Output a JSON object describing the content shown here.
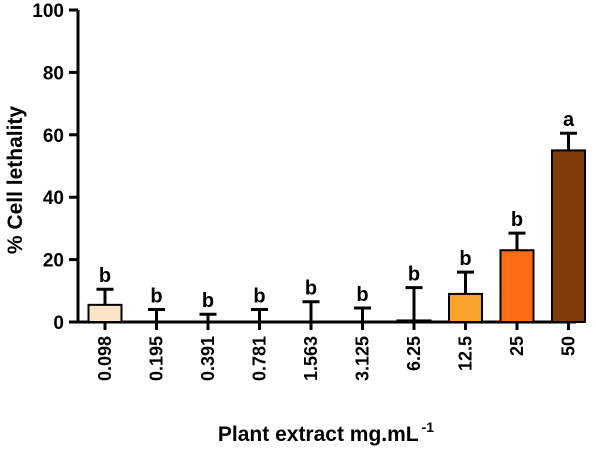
{
  "chart_data": {
    "type": "bar",
    "xlabel": "Plant extract mg.mL",
    "xlabel_superscript": "-1",
    "ylabel": "% Cell lethality",
    "ylim": [
      0,
      100
    ],
    "yticks": [
      "0",
      "20",
      "40",
      "60",
      "80",
      "100"
    ],
    "ytick_values": [
      0,
      20,
      40,
      60,
      80,
      100
    ],
    "categories": [
      "0.098",
      "0.195",
      "0.391",
      "0.781",
      "1.563",
      "3.125",
      "6.25",
      "12.5",
      "25",
      "50"
    ],
    "values": [
      5.5,
      0,
      0,
      0,
      0,
      0,
      0.5,
      9,
      23,
      55
    ],
    "errors": [
      5,
      4,
      2.5,
      4,
      6.5,
      4.5,
      10.5,
      7,
      5.5,
      5.5
    ],
    "significance": [
      "b",
      "b",
      "b",
      "b",
      "b",
      "b",
      "b",
      "b",
      "b",
      "a"
    ],
    "colors": [
      "#fbe3c6",
      "#ffffff",
      "#ffffff",
      "#ffffff",
      "#ffffff",
      "#ffffff",
      "#ffffff",
      "#f9a22b",
      "#ff6a14",
      "#7f3b08"
    ],
    "grid": false,
    "legend": "none"
  }
}
